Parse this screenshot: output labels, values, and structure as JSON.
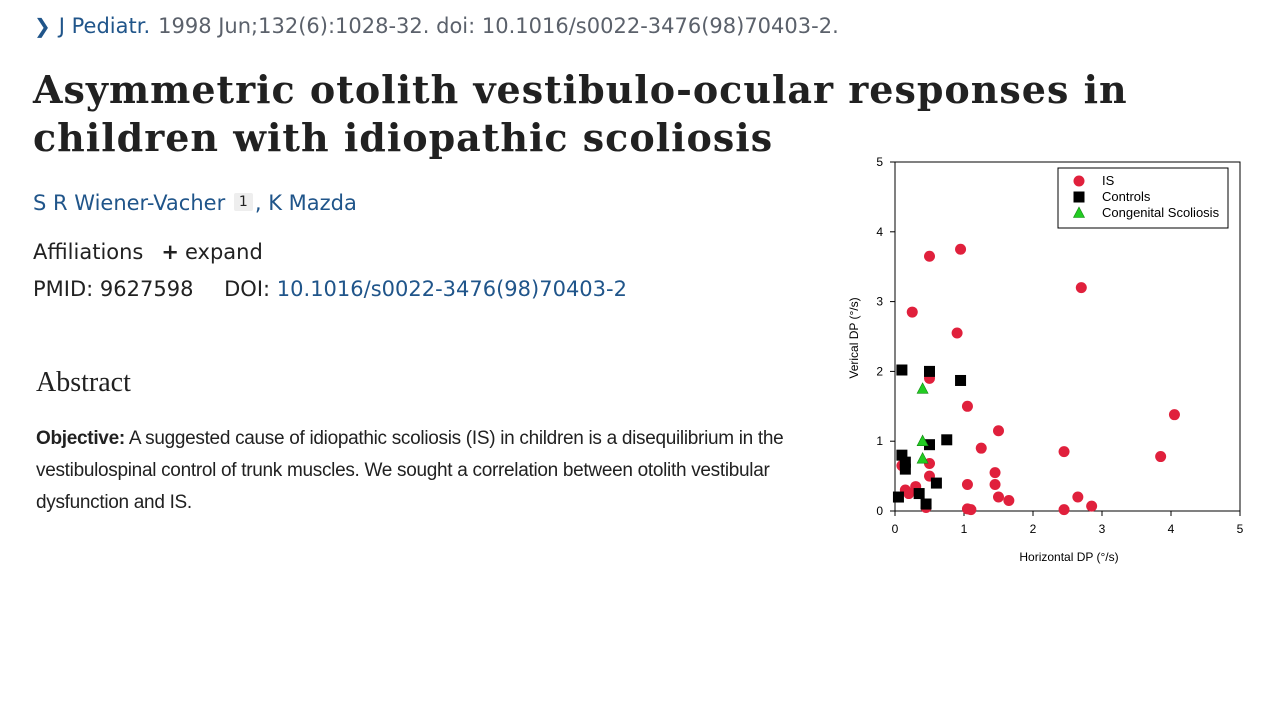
{
  "citation": {
    "chevron_icon": "chevron-right-icon",
    "journal": "J Pediatr.",
    "details": "1998 Jun;132(6):1028-32. doi: 10.1016/s0022-3476(98)70403-2."
  },
  "article": {
    "title": "Asymmetric otolith vestibulo-ocular responses in children with idiopathic scoliosis",
    "authors": [
      {
        "name": "S R Wiener-Vacher",
        "affiliation_ref": "1"
      },
      {
        "name": "K Mazda"
      }
    ],
    "author_separator": ",",
    "affiliations_label": "Affiliations",
    "expand_icon": "plus-icon",
    "expand_label": "expand",
    "pmid_label": "PMID:",
    "pmid": "9627598",
    "doi_label": "DOI:",
    "doi": "10.1016/s0022-3476(98)70403-2"
  },
  "abstract": {
    "heading": "Abstract",
    "objective_label": "Objective:",
    "objective_text": "A suggested cause of idiopathic scoliosis (IS) in children is a disequilibrium in the vestibulospinal control of trunk muscles. We sought a correlation between otolith vestibular dysfunction and IS."
  },
  "chart_data": {
    "type": "scatter",
    "xlabel": "Horizontal DP (°/s)",
    "ylabel": "Verical DP (°/s)",
    "xlim": [
      0,
      5
    ],
    "ylim": [
      0,
      5
    ],
    "xticks": [
      "0",
      "1",
      "2",
      "3",
      "4",
      "5"
    ],
    "yticks": [
      "0",
      "1",
      "2",
      "3",
      "4",
      "5"
    ],
    "legend_position": "top-right",
    "series": [
      {
        "name": "IS",
        "marker": "circle",
        "color": "#e0203c",
        "points": [
          [
            0.1,
            0.65
          ],
          [
            0.2,
            0.25
          ],
          [
            0.15,
            0.3
          ],
          [
            0.3,
            0.35
          ],
          [
            0.5,
            0.68
          ],
          [
            0.5,
            0.5
          ],
          [
            0.45,
            0.05
          ],
          [
            0.5,
            1.9
          ],
          [
            0.5,
            3.65
          ],
          [
            0.25,
            2.85
          ],
          [
            0.95,
            3.75
          ],
          [
            0.9,
            2.55
          ],
          [
            1.05,
            1.5
          ],
          [
            1.05,
            0.38
          ],
          [
            1.05,
            0.03
          ],
          [
            1.1,
            0.02
          ],
          [
            1.25,
            0.9
          ],
          [
            1.45,
            0.55
          ],
          [
            1.45,
            0.38
          ],
          [
            1.5,
            1.15
          ],
          [
            1.5,
            0.2
          ],
          [
            1.65,
            0.15
          ],
          [
            2.45,
            0.85
          ],
          [
            2.45,
            0.02
          ],
          [
            2.65,
            0.2
          ],
          [
            2.7,
            3.2
          ],
          [
            2.85,
            0.07
          ],
          [
            3.85,
            0.78
          ],
          [
            4.05,
            1.38
          ]
        ]
      },
      {
        "name": "Controls",
        "marker": "square",
        "color": "#000000",
        "points": [
          [
            0.1,
            2.02
          ],
          [
            0.1,
            0.8
          ],
          [
            0.15,
            0.7
          ],
          [
            0.15,
            0.6
          ],
          [
            0.05,
            0.2
          ],
          [
            0.35,
            0.25
          ],
          [
            0.45,
            0.1
          ],
          [
            0.5,
            0.95
          ],
          [
            0.5,
            2.0
          ],
          [
            0.6,
            0.4
          ],
          [
            0.75,
            1.02
          ],
          [
            0.95,
            1.87
          ]
        ]
      },
      {
        "name": "Congenital Scoliosis",
        "marker": "triangle",
        "color": "#22cc22",
        "points": [
          [
            0.4,
            1.75
          ],
          [
            0.4,
            1.0
          ],
          [
            0.4,
            0.75
          ]
        ]
      }
    ]
  }
}
